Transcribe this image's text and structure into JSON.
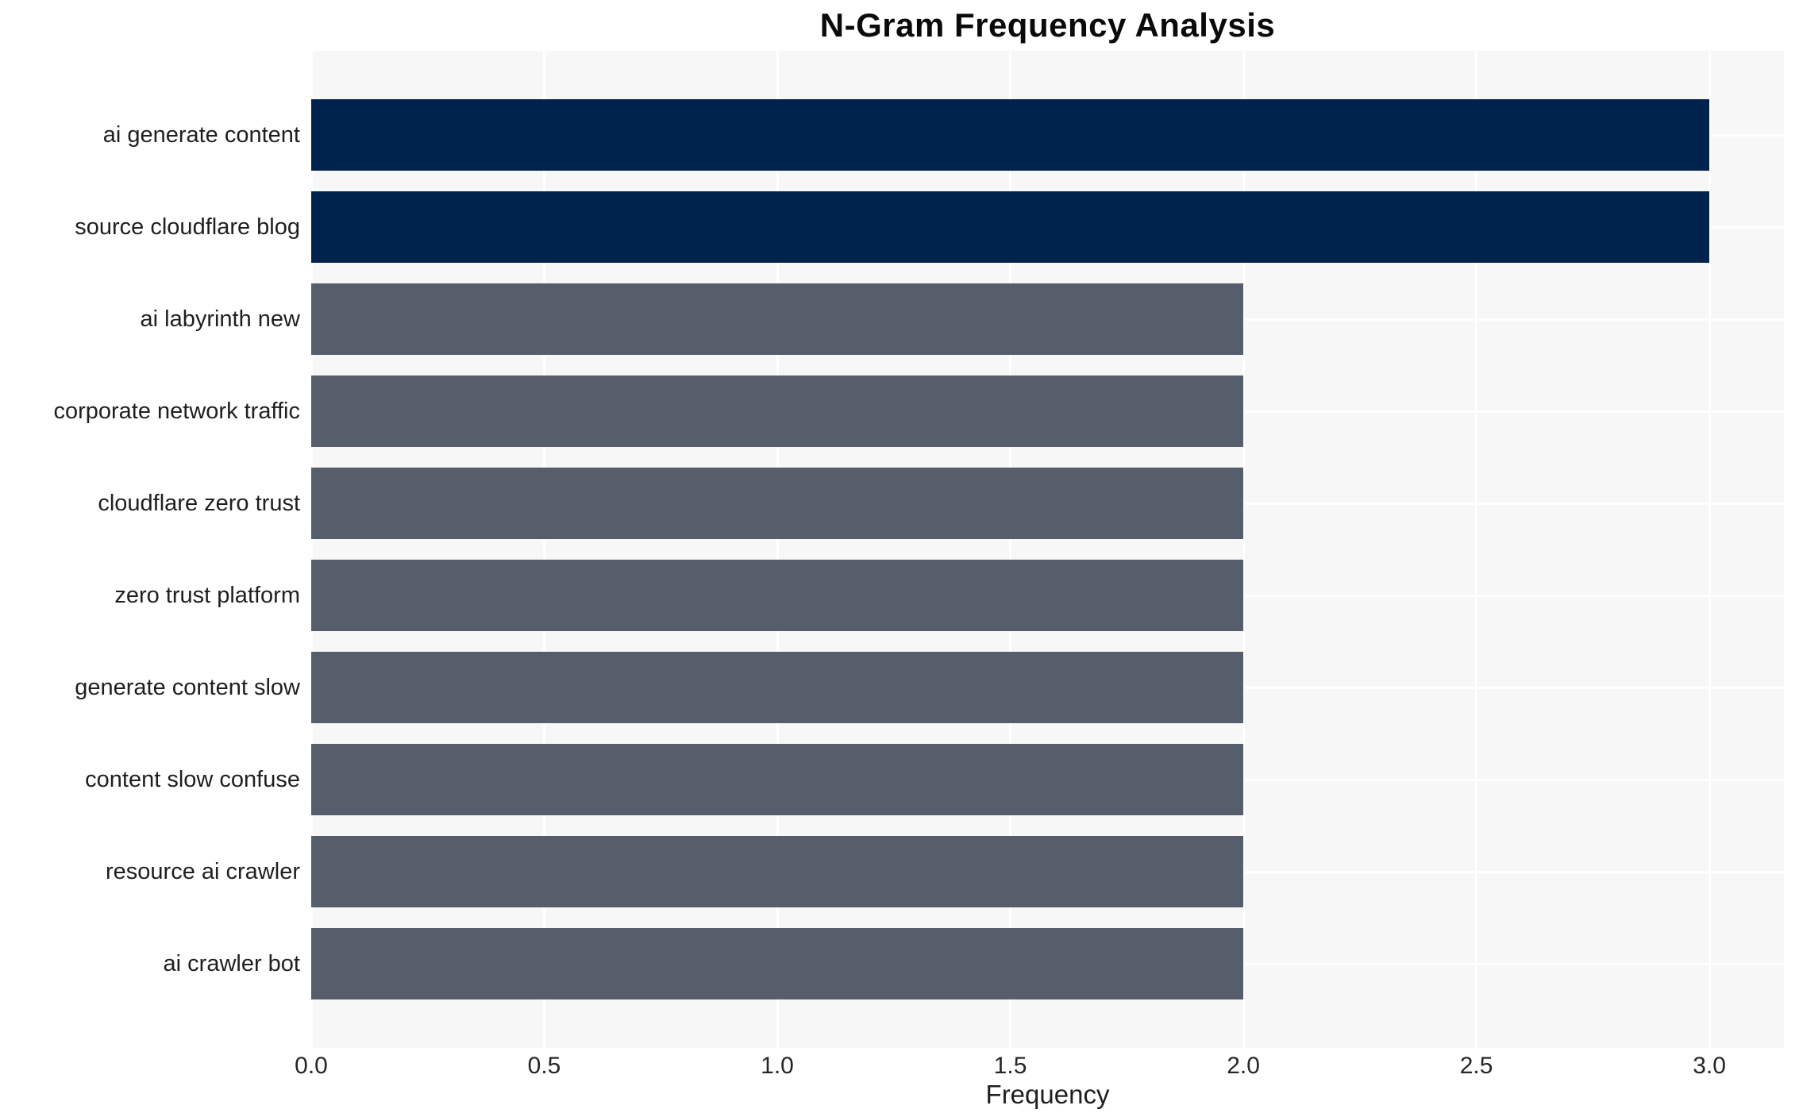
{
  "chart_data": {
    "type": "bar",
    "orientation": "horizontal",
    "title": "N-Gram Frequency Analysis",
    "xlabel": "Frequency",
    "ylabel": "",
    "categories": [
      "ai generate content",
      "source cloudflare blog",
      "ai labyrinth new",
      "corporate network traffic",
      "cloudflare zero trust",
      "zero trust platform",
      "generate content slow",
      "content slow confuse",
      "resource ai crawler",
      "ai crawler bot"
    ],
    "values": [
      3,
      3,
      2,
      2,
      2,
      2,
      2,
      2,
      2,
      2
    ],
    "bar_colors": [
      "#00234e",
      "#00234e",
      "#565d6b",
      "#565d6b",
      "#565d6b",
      "#565d6b",
      "#565d6b",
      "#565d6b",
      "#565d6b",
      "#565d6b"
    ],
    "xlim": [
      0,
      3.16
    ],
    "xticks": [
      "0.0",
      "0.5",
      "1.0",
      "1.5",
      "2.0",
      "2.5",
      "3.0"
    ],
    "grid": true,
    "legend": "none",
    "colors": {
      "bar_highlight": "#00234e",
      "bar_default": "#565d6b",
      "plot_background": "#f7f7f7",
      "gridline": "#ffffff",
      "title_text": "#0a0a0a",
      "label_text": "#1f1f1f",
      "tick_text": "#262626"
    }
  }
}
